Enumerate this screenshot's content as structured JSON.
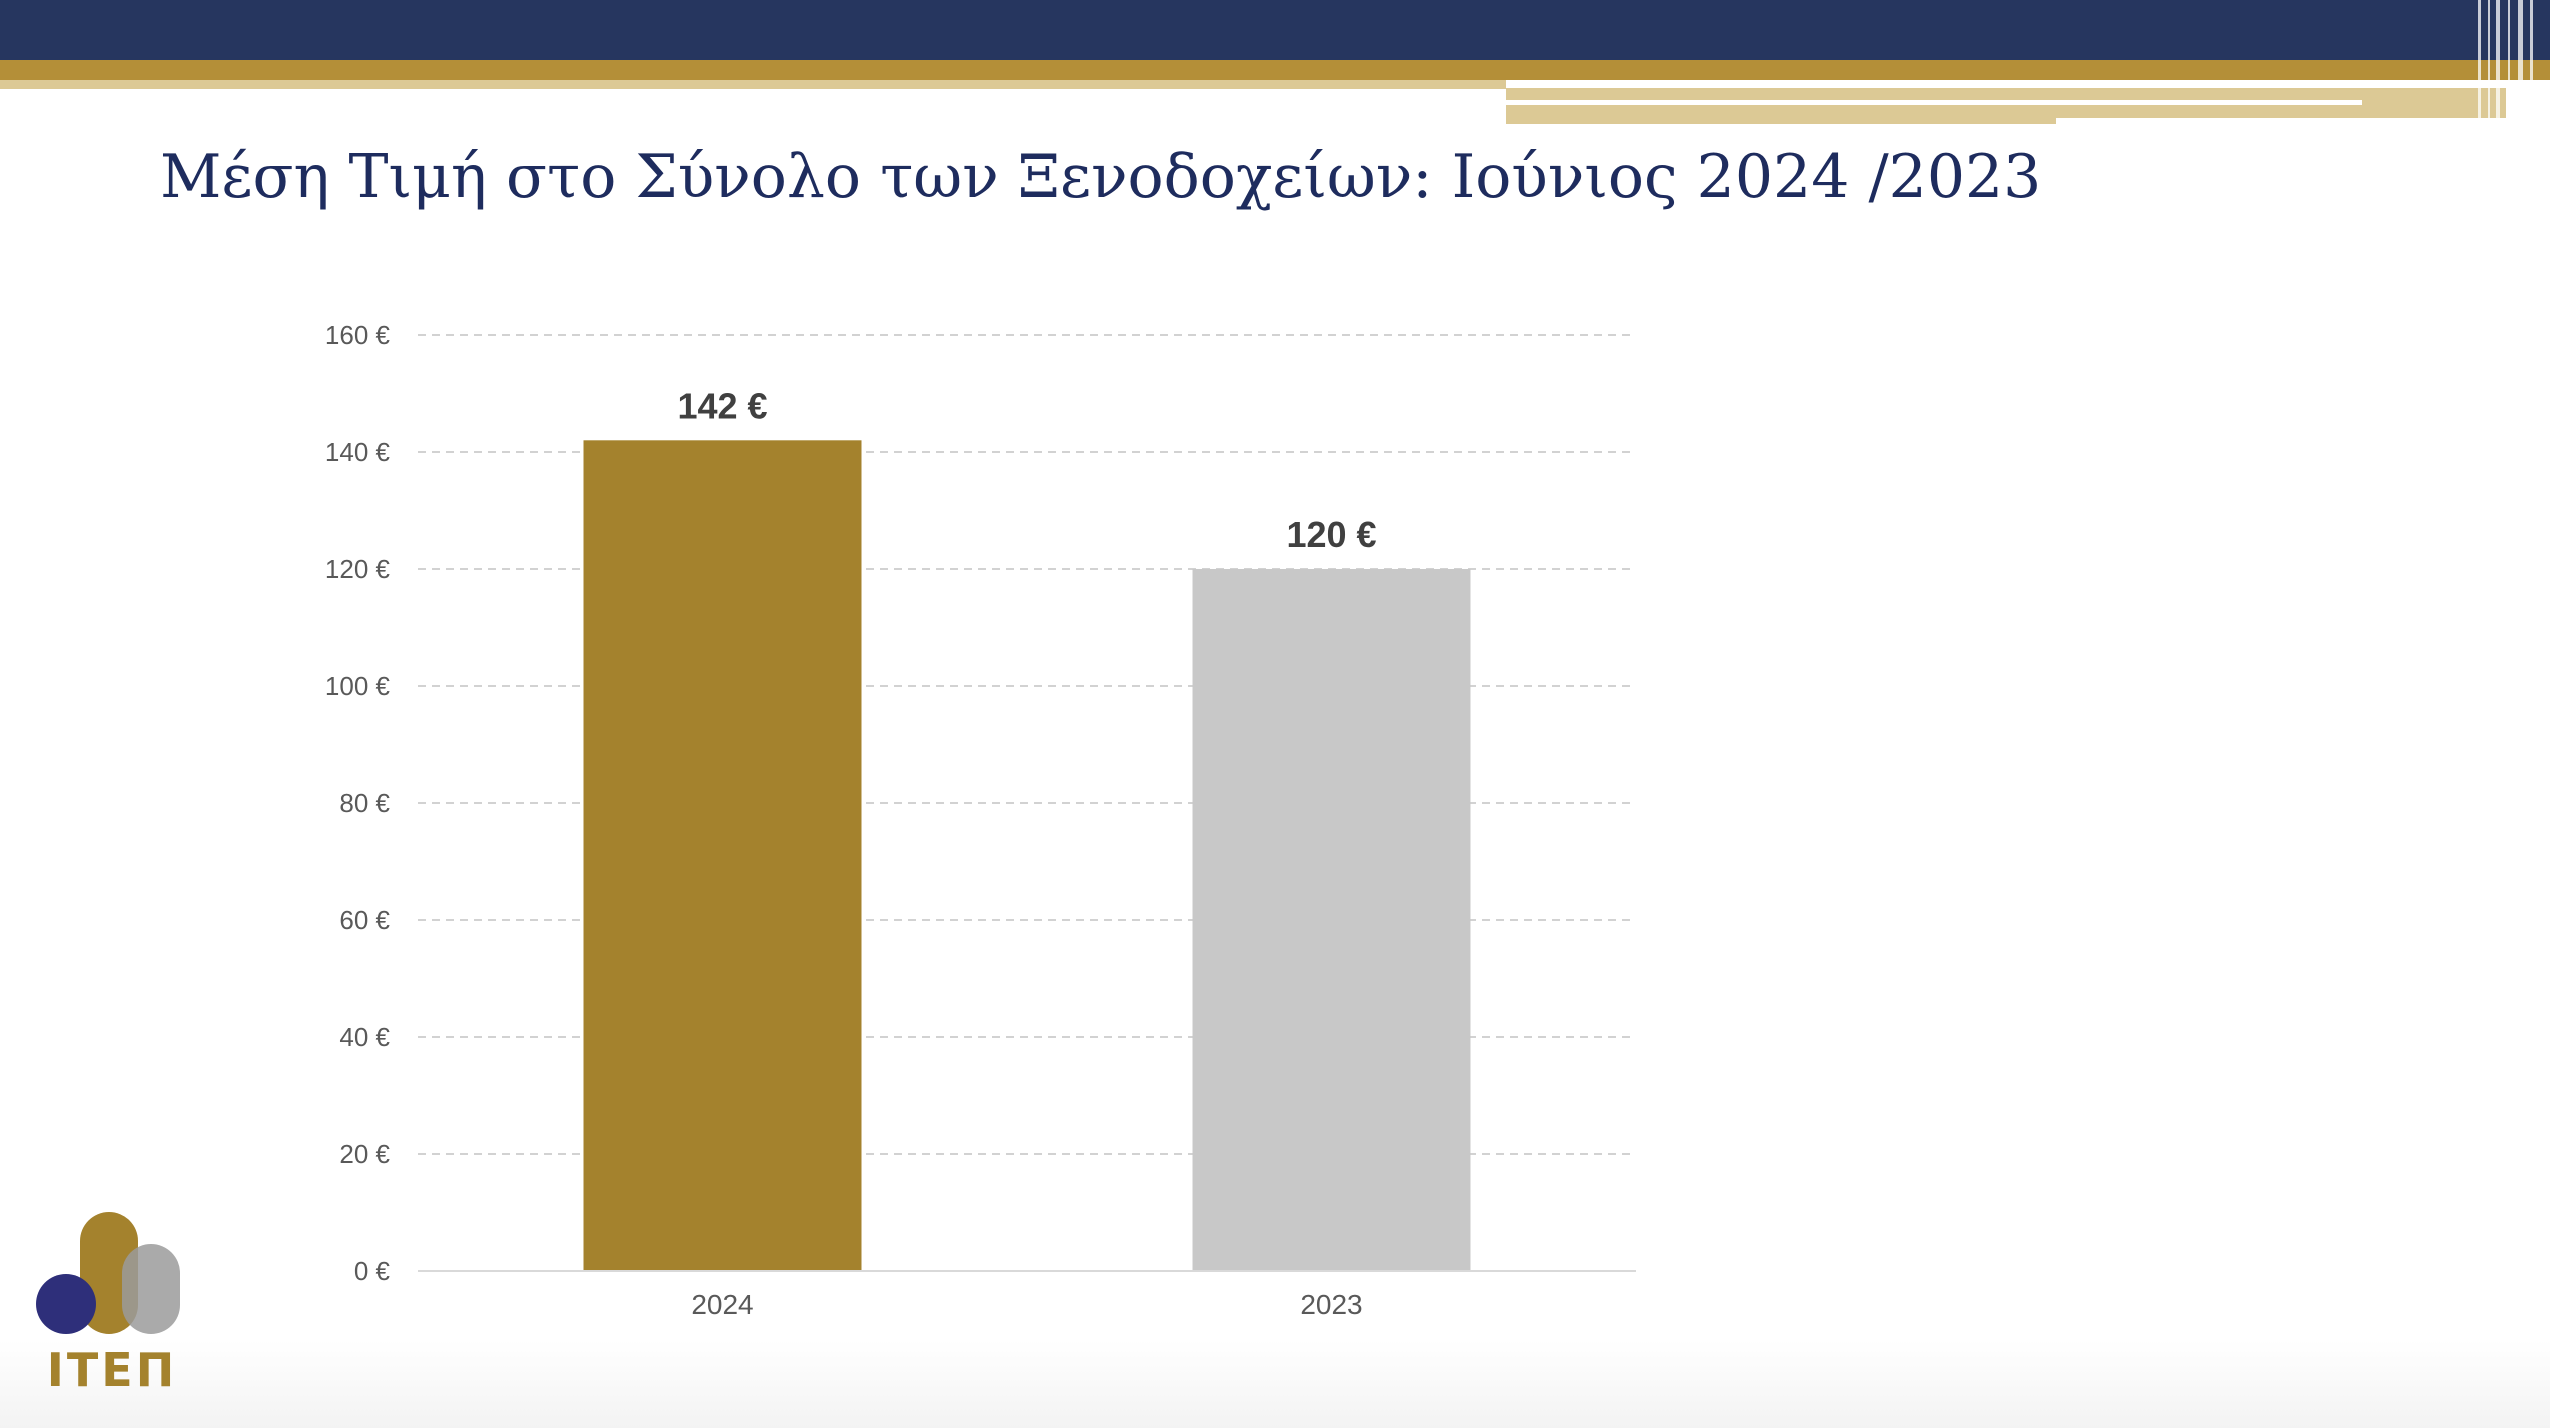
{
  "slide": {
    "title": "Μέση Τιμή στο Σύνολο των Ξενοδοχείων: Ιούνιος 2024 /2023",
    "logo_text": "ΙΤΕΠ",
    "colors": {
      "navy": "#26365f",
      "gold": "#b48f38",
      "cream": "#dcc995",
      "title": "#1e2c5e",
      "logo_navy": "#2e2f7a",
      "logo_gold": "#a4822d",
      "logo_gray": "#9b9b9b"
    }
  },
  "chart_data": {
    "type": "bar",
    "categories": [
      "2024",
      "2023"
    ],
    "values": [
      142,
      120
    ],
    "data_labels": [
      "142 €",
      "120 €"
    ],
    "bar_colors": [
      "#a4822d",
      "#c8c8c8"
    ],
    "ylim": [
      0,
      160
    ],
    "yticks": [
      0,
      20,
      40,
      60,
      80,
      100,
      120,
      140,
      160
    ],
    "ytick_labels": [
      "0 €",
      "20 €",
      "40 €",
      "60 €",
      "80 €",
      "100 €",
      "120 €",
      "140 €",
      "160 €"
    ],
    "grid": true,
    "legend": false
  }
}
